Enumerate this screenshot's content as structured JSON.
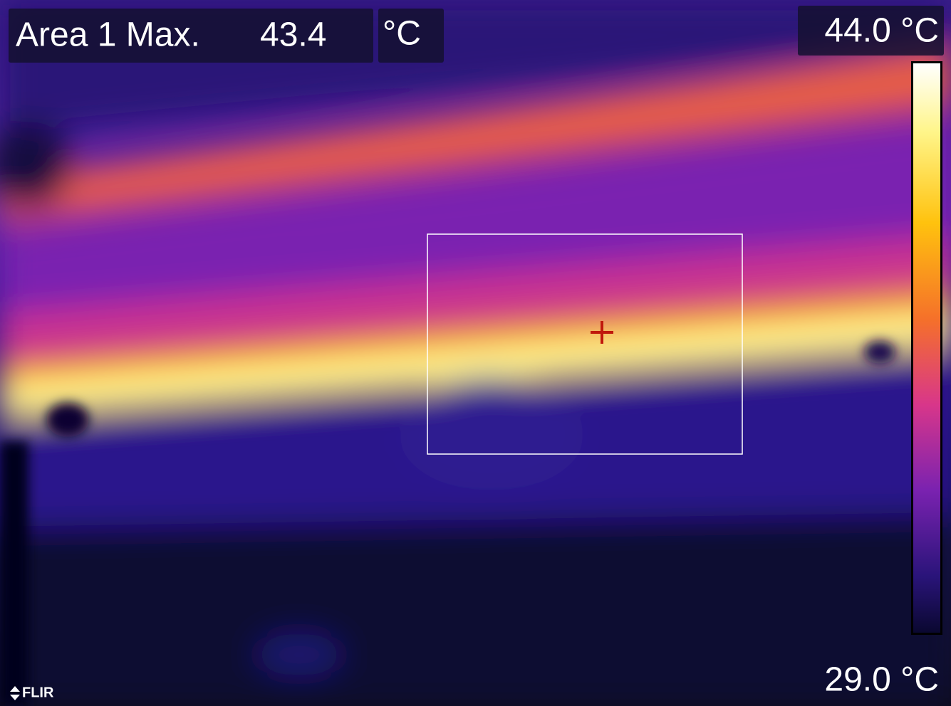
{
  "measurement": {
    "label": "Area 1 Max.",
    "value": "43.4",
    "unit": "°C"
  },
  "scale": {
    "max": "44.0 °C",
    "min": "29.0 °C"
  },
  "logo": "FLIR"
}
